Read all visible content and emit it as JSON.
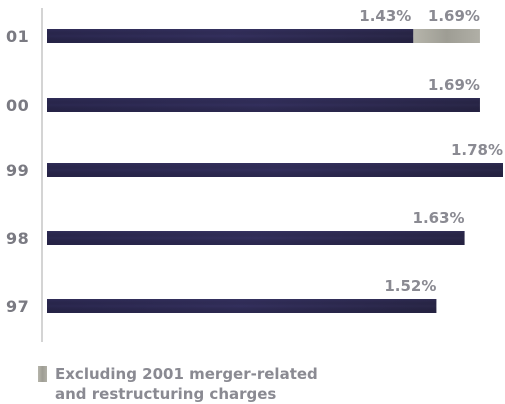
{
  "chart_data": {
    "type": "bar",
    "orientation": "horizontal",
    "categories": [
      "01",
      "00",
      "99",
      "98",
      "97"
    ],
    "series": [
      {
        "name": "",
        "values": [
          1.43,
          1.69,
          1.78,
          1.63,
          1.52
        ],
        "labels": [
          "1.43%",
          "1.69%",
          "1.78%",
          "1.63%",
          "1.52%"
        ],
        "color": "#2e2b55"
      },
      {
        "name": "Excluding 2001 merger-related and restructuring charges",
        "values": [
          1.69,
          null,
          null,
          null,
          null
        ],
        "labels": [
          "1.69%",
          "",
          "",
          "",
          ""
        ],
        "color": "#a9a99f"
      }
    ],
    "xlim": [
      0,
      1.78
    ],
    "grid": false,
    "legend_position": "bottom-left",
    "legend_lines": [
      "Excluding 2001 merger-related",
      "and restructuring charges"
    ]
  }
}
